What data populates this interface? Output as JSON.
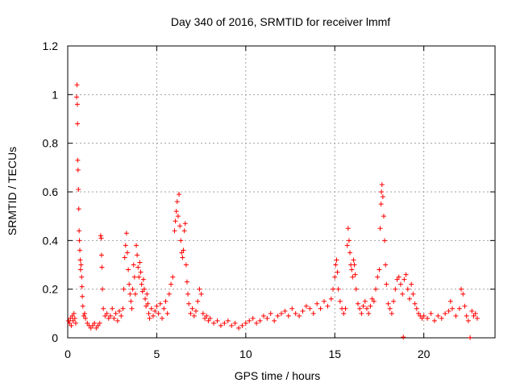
{
  "chart_data": {
    "type": "scatter",
    "title": "Day 340 of 2016, SRMTID for receiver lmmf",
    "xlabel": "GPS time / hours",
    "ylabel": "SRMTID / TECUs",
    "xlim": [
      0,
      24
    ],
    "ylim": [
      0,
      1.2
    ],
    "xticks": [
      "0",
      "5",
      "10",
      "15",
      "20"
    ],
    "yticks": [
      "0",
      "0.2",
      "0.4",
      "0.6",
      "0.8",
      "1",
      "1.2"
    ],
    "xtick_values": [
      0,
      5,
      10,
      15,
      20
    ],
    "ytick_values": [
      0,
      0.2,
      0.4,
      0.6,
      0.8,
      1.0,
      1.2
    ],
    "grid": true,
    "marker": "+",
    "series": [
      {
        "name": "SRMTID",
        "color": "#ff0000",
        "points": [
          [
            0.05,
            0.07
          ],
          [
            0.1,
            0.06
          ],
          [
            0.15,
            0.08
          ],
          [
            0.2,
            0.05
          ],
          [
            0.25,
            0.09
          ],
          [
            0.3,
            0.07
          ],
          [
            0.35,
            0.1
          ],
          [
            0.4,
            0.08
          ],
          [
            0.45,
            0.06
          ],
          [
            0.5,
            0.99
          ],
          [
            0.52,
            1.04
          ],
          [
            0.54,
            0.96
          ],
          [
            0.55,
            0.88
          ],
          [
            0.56,
            0.73
          ],
          [
            0.58,
            0.69
          ],
          [
            0.6,
            0.61
          ],
          [
            0.62,
            0.53
          ],
          [
            0.64,
            0.44
          ],
          [
            0.66,
            0.4
          ],
          [
            0.68,
            0.36
          ],
          [
            0.7,
            0.32
          ],
          [
            0.72,
            0.28
          ],
          [
            0.75,
            0.3
          ],
          [
            0.78,
            0.25
          ],
          [
            0.8,
            0.21
          ],
          [
            0.82,
            0.17
          ],
          [
            0.85,
            0.13
          ],
          [
            0.9,
            0.09
          ],
          [
            0.95,
            0.1
          ],
          [
            1.0,
            0.08
          ],
          [
            1.1,
            0.06
          ],
          [
            1.2,
            0.05
          ],
          [
            1.3,
            0.04
          ],
          [
            1.4,
            0.05
          ],
          [
            1.5,
            0.06
          ],
          [
            1.6,
            0.04
          ],
          [
            1.7,
            0.05
          ],
          [
            1.8,
            0.06
          ],
          [
            1.85,
            0.42
          ],
          [
            1.88,
            0.41
          ],
          [
            1.9,
            0.34
          ],
          [
            1.92,
            0.29
          ],
          [
            1.95,
            0.2
          ],
          [
            2.0,
            0.12
          ],
          [
            2.1,
            0.09
          ],
          [
            2.2,
            0.1
          ],
          [
            2.3,
            0.08
          ],
          [
            2.4,
            0.09
          ],
          [
            2.5,
            0.12
          ],
          [
            2.6,
            0.08
          ],
          [
            2.7,
            0.1
          ],
          [
            2.8,
            0.07
          ],
          [
            2.9,
            0.11
          ],
          [
            3.0,
            0.09
          ],
          [
            3.1,
            0.12
          ],
          [
            3.15,
            0.2
          ],
          [
            3.2,
            0.33
          ],
          [
            3.25,
            0.38
          ],
          [
            3.3,
            0.43
          ],
          [
            3.35,
            0.35
          ],
          [
            3.4,
            0.28
          ],
          [
            3.45,
            0.22
          ],
          [
            3.5,
            0.18
          ],
          [
            3.55,
            0.15
          ],
          [
            3.6,
            0.12
          ],
          [
            3.65,
            0.2
          ],
          [
            3.7,
            0.3
          ],
          [
            3.75,
            0.25
          ],
          [
            3.8,
            0.18
          ],
          [
            3.85,
            0.38
          ],
          [
            3.9,
            0.34
          ],
          [
            3.95,
            0.29
          ],
          [
            4.0,
            0.25
          ],
          [
            4.05,
            0.31
          ],
          [
            4.1,
            0.27
          ],
          [
            4.15,
            0.22
          ],
          [
            4.2,
            0.19
          ],
          [
            4.25,
            0.24
          ],
          [
            4.3,
            0.2
          ],
          [
            4.35,
            0.16
          ],
          [
            4.4,
            0.13
          ],
          [
            4.45,
            0.18
          ],
          [
            4.5,
            0.14
          ],
          [
            4.55,
            0.1
          ],
          [
            4.6,
            0.08
          ],
          [
            4.7,
            0.12
          ],
          [
            4.8,
            0.09
          ],
          [
            4.9,
            0.11
          ],
          [
            5.0,
            0.13
          ],
          [
            5.1,
            0.1
          ],
          [
            5.2,
            0.14
          ],
          [
            5.3,
            0.08
          ],
          [
            5.4,
            0.12
          ],
          [
            5.5,
            0.15
          ],
          [
            5.6,
            0.1
          ],
          [
            5.7,
            0.18
          ],
          [
            5.8,
            0.22
          ],
          [
            5.9,
            0.25
          ],
          [
            6.0,
            0.44
          ],
          [
            6.05,
            0.48
          ],
          [
            6.1,
            0.52
          ],
          [
            6.15,
            0.56
          ],
          [
            6.2,
            0.5
          ],
          [
            6.25,
            0.59
          ],
          [
            6.3,
            0.46
          ],
          [
            6.35,
            0.4
          ],
          [
            6.4,
            0.35
          ],
          [
            6.45,
            0.33
          ],
          [
            6.5,
            0.36
          ],
          [
            6.55,
            0.44
          ],
          [
            6.6,
            0.47
          ],
          [
            6.65,
            0.3
          ],
          [
            6.7,
            0.23
          ],
          [
            6.75,
            0.18
          ],
          [
            6.8,
            0.14
          ],
          [
            6.9,
            0.1
          ],
          [
            7.0,
            0.12
          ],
          [
            7.1,
            0.09
          ],
          [
            7.2,
            0.11
          ],
          [
            7.3,
            0.15
          ],
          [
            7.4,
            0.2
          ],
          [
            7.5,
            0.18
          ],
          [
            7.6,
            0.1
          ],
          [
            7.7,
            0.08
          ],
          [
            7.8,
            0.09
          ],
          [
            7.9,
            0.07
          ],
          [
            8.0,
            0.08
          ],
          [
            8.2,
            0.06
          ],
          [
            8.4,
            0.07
          ],
          [
            8.6,
            0.05
          ],
          [
            8.8,
            0.06
          ],
          [
            9.0,
            0.07
          ],
          [
            9.2,
            0.05
          ],
          [
            9.4,
            0.06
          ],
          [
            9.6,
            0.04
          ],
          [
            9.8,
            0.05
          ],
          [
            10.0,
            0.06
          ],
          [
            10.2,
            0.07
          ],
          [
            10.4,
            0.08
          ],
          [
            10.6,
            0.06
          ],
          [
            10.8,
            0.07
          ],
          [
            11.0,
            0.09
          ],
          [
            11.2,
            0.08
          ],
          [
            11.4,
            0.1
          ],
          [
            11.6,
            0.07
          ],
          [
            11.8,
            0.09
          ],
          [
            12.0,
            0.1
          ],
          [
            12.2,
            0.11
          ],
          [
            12.4,
            0.09
          ],
          [
            12.6,
            0.12
          ],
          [
            12.8,
            0.1
          ],
          [
            13.0,
            0.09
          ],
          [
            13.2,
            0.11
          ],
          [
            13.4,
            0.13
          ],
          [
            13.6,
            0.12
          ],
          [
            13.8,
            0.1
          ],
          [
            14.0,
            0.14
          ],
          [
            14.2,
            0.12
          ],
          [
            14.4,
            0.15
          ],
          [
            14.6,
            0.13
          ],
          [
            14.8,
            0.16
          ],
          [
            14.9,
            0.2
          ],
          [
            15.0,
            0.25
          ],
          [
            15.05,
            0.3
          ],
          [
            15.1,
            0.32
          ],
          [
            15.15,
            0.27
          ],
          [
            15.2,
            0.2
          ],
          [
            15.3,
            0.15
          ],
          [
            15.4,
            0.12
          ],
          [
            15.5,
            0.1
          ],
          [
            15.6,
            0.12
          ],
          [
            15.7,
            0.38
          ],
          [
            15.75,
            0.45
          ],
          [
            15.8,
            0.4
          ],
          [
            15.85,
            0.35
          ],
          [
            15.9,
            0.3
          ],
          [
            15.95,
            0.28
          ],
          [
            16.0,
            0.25
          ],
          [
            16.05,
            0.32
          ],
          [
            16.1,
            0.3
          ],
          [
            16.15,
            0.26
          ],
          [
            16.2,
            0.2
          ],
          [
            16.3,
            0.14
          ],
          [
            16.4,
            0.12
          ],
          [
            16.5,
            0.1
          ],
          [
            16.6,
            0.13
          ],
          [
            16.7,
            0.15
          ],
          [
            16.8,
            0.12
          ],
          [
            16.9,
            0.1
          ],
          [
            17.0,
            0.13
          ],
          [
            17.1,
            0.16
          ],
          [
            17.2,
            0.15
          ],
          [
            17.3,
            0.2
          ],
          [
            17.4,
            0.25
          ],
          [
            17.5,
            0.28
          ],
          [
            17.55,
            0.45
          ],
          [
            17.6,
            0.55
          ],
          [
            17.62,
            0.6
          ],
          [
            17.65,
            0.63
          ],
          [
            17.7,
            0.58
          ],
          [
            17.75,
            0.5
          ],
          [
            17.8,
            0.4
          ],
          [
            17.85,
            0.3
          ],
          [
            17.9,
            0.22
          ],
          [
            18.0,
            0.14
          ],
          [
            18.1,
            0.12
          ],
          [
            18.2,
            0.1
          ],
          [
            18.3,
            0.15
          ],
          [
            18.4,
            0.2
          ],
          [
            18.5,
            0.24
          ],
          [
            18.6,
            0.25
          ],
          [
            18.7,
            0.22
          ],
          [
            18.8,
            0.18
          ],
          [
            18.85,
            0.003
          ],
          [
            18.9,
            0.24
          ],
          [
            19.0,
            0.26
          ],
          [
            19.1,
            0.2
          ],
          [
            19.2,
            0.16
          ],
          [
            19.3,
            0.22
          ],
          [
            19.4,
            0.18
          ],
          [
            19.5,
            0.14
          ],
          [
            19.6,
            0.12
          ],
          [
            19.7,
            0.1
          ],
          [
            19.8,
            0.09
          ],
          [
            19.9,
            0.08
          ],
          [
            20.0,
            0.09
          ],
          [
            20.2,
            0.08
          ],
          [
            20.4,
            0.1
          ],
          [
            20.6,
            0.07
          ],
          [
            20.8,
            0.09
          ],
          [
            21.0,
            0.08
          ],
          [
            21.2,
            0.1
          ],
          [
            21.4,
            0.11
          ],
          [
            21.5,
            0.15
          ],
          [
            21.6,
            0.12
          ],
          [
            21.8,
            0.09
          ],
          [
            22.0,
            0.12
          ],
          [
            22.1,
            0.2
          ],
          [
            22.2,
            0.18
          ],
          [
            22.3,
            0.13
          ],
          [
            22.4,
            0.09
          ],
          [
            22.5,
            0.07
          ],
          [
            22.6,
            0.001
          ],
          [
            22.7,
            0.11
          ],
          [
            22.8,
            0.09
          ],
          [
            22.9,
            0.1
          ],
          [
            23.0,
            0.08
          ]
        ]
      }
    ]
  }
}
